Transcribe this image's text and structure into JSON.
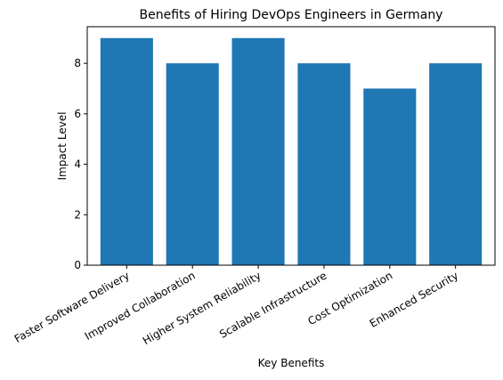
{
  "chart_data": {
    "type": "bar",
    "title": "Benefits of Hiring DevOps Engineers in Germany",
    "xlabel": "Key Benefits",
    "ylabel": "Impact Level",
    "categories": [
      "Faster Software Delivery",
      "Improved Collaboration",
      "Higher System Reliability",
      "Scalable Infrastructure",
      "Cost Optimization",
      "Enhanced Security"
    ],
    "values": [
      9,
      8,
      9,
      8,
      7,
      8
    ],
    "ylim": [
      0,
      9.45
    ],
    "yticks": [
      0,
      2,
      4,
      6,
      8
    ],
    "grid": false,
    "bar_color": "#1f77b4"
  }
}
